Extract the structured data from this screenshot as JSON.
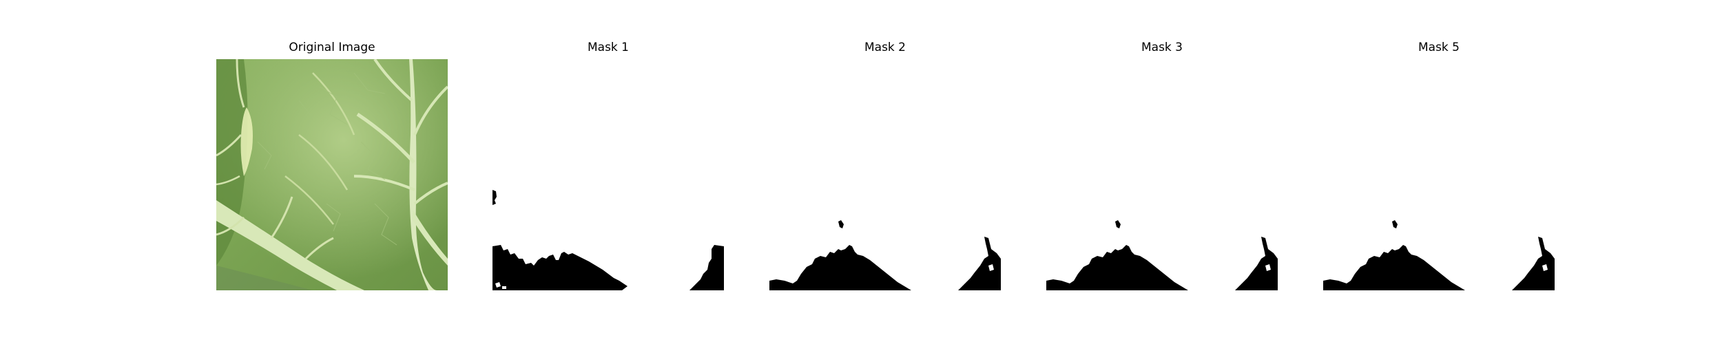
{
  "figure": {
    "panels": [
      {
        "title": "Original Image",
        "kind": "photo",
        "subject": "cabbage-leaf"
      },
      {
        "title": "Mask 1",
        "kind": "mask",
        "variant": "a"
      },
      {
        "title": "Mask 2",
        "kind": "mask",
        "variant": "b"
      },
      {
        "title": "Mask 3",
        "kind": "mask",
        "variant": "b"
      },
      {
        "title": "Mask 5",
        "kind": "mask",
        "variant": "b"
      }
    ]
  },
  "colors": {
    "background": "#ffffff",
    "mask_foreground": "#000000",
    "leaf_light": "#a9c77c",
    "leaf_dark": "#5f8a3c",
    "vein": "#d8e8b8"
  }
}
